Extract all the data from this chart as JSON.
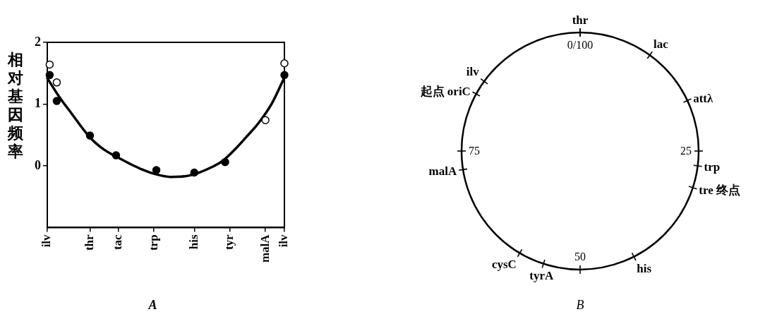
{
  "chart_data": [
    {
      "type": "scatter",
      "title": "A",
      "ylabel": "相对基因频率",
      "categories": [
        "ilv",
        null,
        null,
        null,
        null,
        null,
        null,
        null,
        null,
        null,
        null,
        null,
        null,
        null,
        null,
        null,
        null,
        null,
        "thr",
        null,
        null,
        null,
        null,
        null,
        null,
        null,
        null,
        null,
        null,
        null,
        "tac",
        null,
        null,
        null,
        null,
        null,
        null,
        null,
        null,
        null,
        null,
        null,
        null,
        null,
        null,
        "trp",
        null,
        null,
        null,
        null,
        null,
        null,
        null,
        null,
        null,
        null,
        null,
        null,
        null,
        null,
        null,
        null,
        "his",
        null,
        null,
        null,
        null,
        null,
        null,
        null,
        null,
        null,
        null,
        null,
        null,
        null,
        null,
        "tyr",
        null,
        null,
        null,
        null,
        null,
        null,
        null,
        null,
        null,
        null,
        null,
        null,
        null,
        null,
        "malA",
        null,
        null,
        null,
        null,
        null,
        null,
        null,
        "ilv"
      ],
      "ylim": [
        -1,
        2
      ],
      "yticks": [
        0,
        1,
        2
      ],
      "series": [
        {
          "type": "line",
          "color": "#000000",
          "marker": "none",
          "values": [
            1.42,
            null,
            null,
            null,
            null,
            1.12,
            null,
            null,
            null,
            null,
            0.86,
            null,
            null,
            null,
            null,
            null,
            null,
            null,
            0.46,
            null,
            null,
            null,
            null,
            null,
            0.26,
            null,
            null,
            null,
            null,
            null,
            0.13,
            null,
            null,
            null,
            null,
            0.03,
            null,
            null,
            null,
            null,
            -0.06,
            null,
            null,
            null,
            null,
            null,
            -0.14,
            null,
            null,
            null,
            null,
            null,
            -0.18,
            null,
            null,
            null,
            null,
            null,
            -0.17,
            null,
            null,
            null,
            null,
            null,
            -0.11,
            null,
            null,
            null,
            null,
            null,
            -0.01,
            null,
            null,
            null,
            0.08,
            null,
            null,
            null,
            null,
            null,
            0.3,
            null,
            null,
            null,
            0.47,
            null,
            null,
            null,
            0.64,
            null,
            null,
            0.79,
            null,
            null,
            null,
            1.03,
            null,
            null,
            null,
            null,
            1.43
          ]
        },
        {
          "type": "scatter",
          "color": "#000000",
          "marker": "circle",
          "values": [
            null,
            1.47,
            null,
            null,
            1.05,
            null,
            null,
            null,
            null,
            null,
            null,
            null,
            null,
            null,
            null,
            null,
            null,
            null,
            0.49,
            null,
            null,
            null,
            null,
            null,
            null,
            null,
            null,
            null,
            null,
            0.17,
            null,
            null,
            null,
            null,
            null,
            null,
            null,
            null,
            null,
            null,
            null,
            null,
            null,
            null,
            null,
            null,
            -0.07,
            null,
            null,
            null,
            null,
            null,
            null,
            null,
            null,
            null,
            null,
            null,
            null,
            null,
            null,
            null,
            -0.11,
            null,
            null,
            null,
            null,
            null,
            null,
            null,
            null,
            null,
            null,
            null,
            null,
            0.06,
            null,
            null,
            null,
            null,
            null,
            null,
            null,
            null,
            null,
            null,
            null,
            null,
            null,
            null,
            null,
            null,
            null,
            null,
            null,
            null,
            null,
            null,
            null,
            null,
            1.47
          ]
        },
        {
          "type": "scatter",
          "color": "#ffffff",
          "marker": "circle",
          "values": [
            null,
            1.64,
            null,
            null,
            1.35,
            null,
            null,
            null,
            null,
            null,
            null,
            null,
            null,
            null,
            null,
            null,
            null,
            null,
            null,
            null,
            null,
            null,
            null,
            null,
            null,
            null,
            null,
            null,
            null,
            null,
            null,
            null,
            null,
            null,
            null,
            null,
            null,
            null,
            null,
            null,
            null,
            null,
            null,
            null,
            null,
            null,
            null,
            null,
            null,
            null,
            null,
            null,
            null,
            null,
            null,
            null,
            null,
            null,
            null,
            null,
            null,
            null,
            null,
            null,
            null,
            null,
            null,
            null,
            null,
            null,
            null,
            null,
            null,
            null,
            null,
            null,
            null,
            null,
            null,
            null,
            null,
            null,
            null,
            null,
            null,
            null,
            null,
            null,
            null,
            null,
            null,
            null,
            0.74,
            null,
            null,
            null,
            null,
            null,
            null,
            null,
            1.66
          ]
        }
      ]
    },
    {
      "type": "other",
      "title": "B",
      "annotations": [
        "thr",
        "0/100",
        "lac",
        "attλ",
        "25",
        "trp",
        "tre 终点",
        "his",
        "50",
        "tyrA",
        "cysC",
        "malA",
        "75",
        "起点 oriC",
        "ilv"
      ]
    }
  ]
}
